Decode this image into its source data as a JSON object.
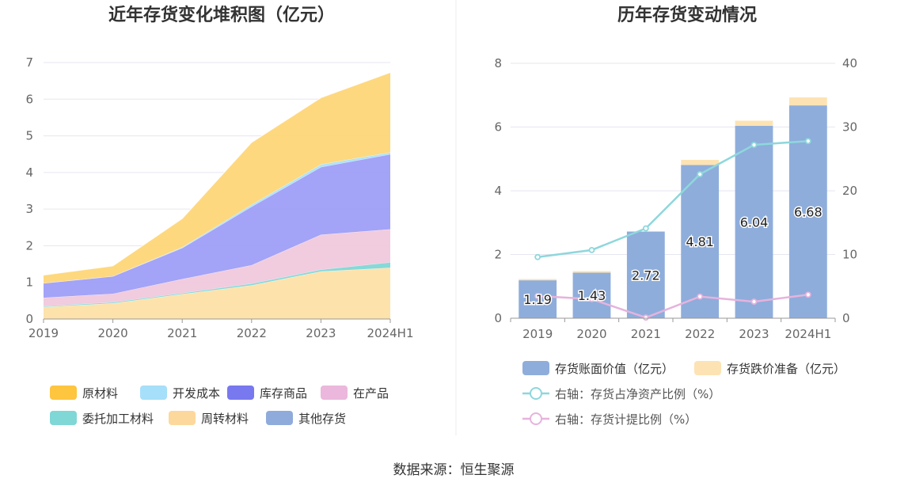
{
  "left_chart": {
    "chart_data": {
      "type": "area",
      "title": "近年存货变化堆积图（亿元）",
      "categories": [
        "2019",
        "2020",
        "2021",
        "2022",
        "2023",
        "2024H1"
      ],
      "ylim": [
        0,
        7
      ],
      "yticks": [
        "0",
        "1",
        "2",
        "3",
        "4",
        "5",
        "6",
        "7"
      ],
      "stacked": true,
      "legend_position": "bottom",
      "series": [
        {
          "name": "周转材料",
          "color": "#fde0a8",
          "values": [
            0.33,
            0.43,
            0.68,
            0.92,
            1.3,
            1.4
          ]
        },
        {
          "name": "委托加工材料",
          "color": "#7fd7d6",
          "values": [
            0.02,
            0.03,
            0.03,
            0.05,
            0.05,
            0.15
          ]
        },
        {
          "name": "在产品",
          "color": "#f0c8dc",
          "values": [
            0.23,
            0.23,
            0.38,
            0.5,
            0.95,
            0.9
          ]
        },
        {
          "name": "库存商品",
          "color": "#9e9ef7",
          "values": [
            0.4,
            0.48,
            0.85,
            1.6,
            1.85,
            2.05
          ]
        },
        {
          "name": "开发成本",
          "color": "#a9e1f7",
          "values": [
            0.0,
            0.0,
            0.02,
            0.05,
            0.07,
            0.05
          ]
        },
        {
          "name": "原材料",
          "color": "#fed677",
          "values": [
            0.22,
            0.28,
            0.78,
            1.7,
            1.82,
            2.18
          ]
        },
        {
          "name": "其他存货",
          "color": "#8fabdb",
          "values": [
            0.0,
            0.0,
            0.0,
            0.0,
            0.0,
            0.0
          ]
        }
      ]
    },
    "legend": [
      {
        "name": "原材料",
        "color": "#fec53e"
      },
      {
        "name": "开发成本",
        "color": "#a6dff9"
      },
      {
        "name": "库存商品",
        "color": "#7878ef"
      },
      {
        "name": "在产品",
        "color": "#ebb7dc"
      },
      {
        "name": "委托加工材料",
        "color": "#7fd7d6"
      },
      {
        "name": "周转材料",
        "color": "#fdd89c"
      },
      {
        "name": "其他存货",
        "color": "#8fabdb"
      }
    ]
  },
  "right_chart": {
    "chart_data": {
      "type": "bar",
      "title": "历年存货变动情况",
      "categories": [
        "2019",
        "2020",
        "2021",
        "2022",
        "2023",
        "2024H1"
      ],
      "ylim": [
        0,
        8
      ],
      "yticks": [
        "0",
        "2",
        "4",
        "6",
        "8"
      ],
      "y2lim": [
        0,
        40
      ],
      "y2ticks": [
        "0",
        "10",
        "20",
        "30",
        "40"
      ],
      "legend_position": "bottom",
      "series": [
        {
          "name": "存货账面价值（亿元）",
          "kind": "bar",
          "color": "#8eaddb",
          "values": [
            1.19,
            1.43,
            2.72,
            4.81,
            6.04,
            6.68
          ],
          "labels": [
            "1.19",
            "1.43",
            "2.72",
            "4.81",
            "6.04",
            "6.68"
          ]
        },
        {
          "name": "存货跌价准备（亿元）",
          "kind": "bar",
          "color": "#fde3b3",
          "values": [
            0.04,
            0.05,
            0.0,
            0.16,
            0.16,
            0.25
          ]
        },
        {
          "name": "右轴：存货占净资产比例（%）",
          "kind": "line",
          "axis": "right",
          "color": "#8ed7dc",
          "values": [
            9.6,
            10.7,
            14.1,
            22.6,
            27.2,
            27.8
          ]
        },
        {
          "name": "右轴：存货计提比例（%）",
          "kind": "line",
          "axis": "right",
          "color": "#e6b3dd",
          "values": [
            3.5,
            3.0,
            0.1,
            3.4,
            2.6,
            3.7
          ]
        }
      ]
    }
  },
  "source": "数据来源：恒生聚源"
}
